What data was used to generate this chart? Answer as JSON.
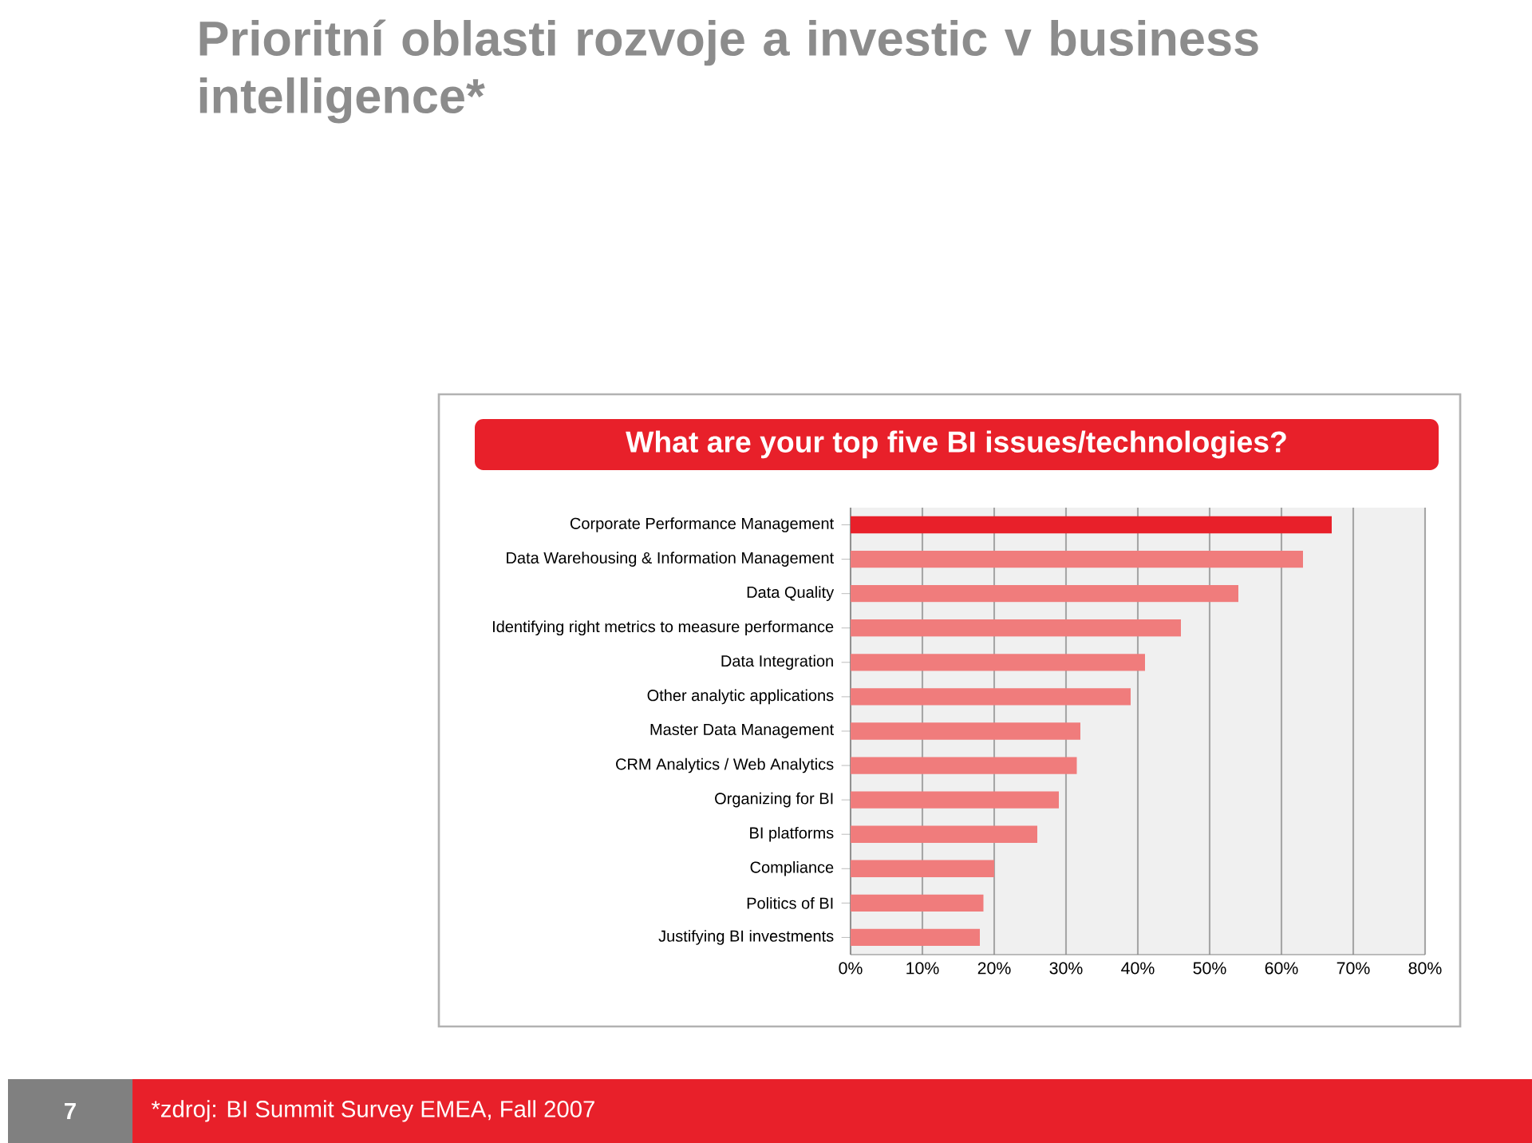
{
  "chart_data": {
    "type": "bar",
    "orientation": "horizontal",
    "title": "Prioritní oblasti rozvoje a investic v business intelligence*",
    "subtitle": "What are your top five BI issues/technologies?",
    "categories": [
      "Corporate Performance Management",
      "Data Warehousing & Information Management",
      "Data Quality",
      "Identifying right metrics to measure performance",
      "Data Integration",
      "Other analytic applications",
      "Master Data Management",
      "CRM Analytics / Web Analytics",
      "Organizing for BI",
      "BI platforms",
      "Compliance",
      "Politics of BI",
      "Justifying BI investments"
    ],
    "values": [
      67,
      63,
      54,
      46,
      41,
      39,
      32,
      31.5,
      29,
      26,
      20,
      18.5,
      18
    ],
    "colors": [
      "#e8202a",
      "#f07c7c",
      "#f07c7c",
      "#f07c7c",
      "#f07c7c",
      "#f07c7c",
      "#f07c7c",
      "#f07c7c",
      "#f07c7c",
      "#f07c7c",
      "#f07c7c",
      "#f07c7c",
      "#f07c7c"
    ],
    "xlim": [
      0,
      80
    ],
    "xticks": [
      {
        "value": 0,
        "label": "0%"
      },
      {
        "value": 10,
        "label": "10%"
      },
      {
        "value": 20,
        "label": "20%"
      },
      {
        "value": 30,
        "label": "30%"
      },
      {
        "value": 40,
        "label": "40%"
      },
      {
        "value": 50,
        "label": "50%"
      },
      {
        "value": 60,
        "label": "60%"
      },
      {
        "value": 70,
        "label": "70%"
      },
      {
        "value": 80,
        "label": "80%"
      }
    ],
    "grid": "x",
    "annotations": [
      "7",
      "*zdroj: BI Summit Survey EMEA, Fall 2007"
    ]
  }
}
